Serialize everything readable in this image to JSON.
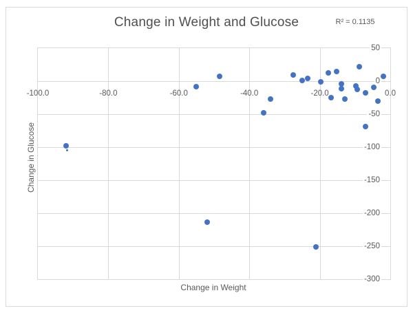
{
  "chart_data": {
    "type": "scatter",
    "title": "Change in Weight and Glucose",
    "annotation": "R² = 0.1135",
    "xlabel": "Change in Weight",
    "ylabel": "Change in Glucose",
    "xlim": [
      -100,
      0
    ],
    "ylim": [
      -300,
      50
    ],
    "x_ticks": [
      -100,
      -80,
      -60,
      -40,
      -20,
      0
    ],
    "x_tick_labels": [
      "-100.0",
      "-80.0",
      "-60.0",
      "-40.0",
      "-20.0",
      "0.0"
    ],
    "y_ticks": [
      50,
      0,
      -50,
      -100,
      -150,
      -200,
      -250,
      -300
    ],
    "y_tick_labels": [
      "50",
      "0",
      "-50",
      "-100",
      "-150",
      "-200",
      "-250",
      "-300"
    ],
    "grid": true,
    "legend": "none",
    "marker_color": "#4472C4",
    "points": [
      {
        "x": -92,
        "y": -98
      },
      {
        "x": -91.7,
        "y": -105,
        "small": true
      },
      {
        "x": -55,
        "y": -8
      },
      {
        "x": -48.5,
        "y": 7
      },
      {
        "x": -52,
        "y": -214
      },
      {
        "x": -36,
        "y": -48
      },
      {
        "x": -34,
        "y": -27
      },
      {
        "x": -27.5,
        "y": 9
      },
      {
        "x": -25,
        "y": 1.5
      },
      {
        "x": -23.5,
        "y": 4
      },
      {
        "x": -21,
        "y": -251
      },
      {
        "x": -19.7,
        "y": -1
      },
      {
        "x": -17.5,
        "y": 13
      },
      {
        "x": -16.8,
        "y": -25
      },
      {
        "x": -15.2,
        "y": 15
      },
      {
        "x": -13.9,
        "y": -4
      },
      {
        "x": -13.9,
        "y": -11
      },
      {
        "x": -12.8,
        "y": -27
      },
      {
        "x": -9.8,
        "y": -7
      },
      {
        "x": -9.4,
        "y": -12.5
      },
      {
        "x": -8.8,
        "y": 22
      },
      {
        "x": -7.1,
        "y": -18
      },
      {
        "x": -7,
        "y": -69
      },
      {
        "x": -4.7,
        "y": -9
      },
      {
        "x": -3.5,
        "y": -30.5
      },
      {
        "x": -2,
        "y": 7
      }
    ]
  },
  "colors": {
    "marker": "#4472C4",
    "gridline": "#D9D9D9",
    "frame_border": "#D9D9D9",
    "text": "#595959"
  }
}
